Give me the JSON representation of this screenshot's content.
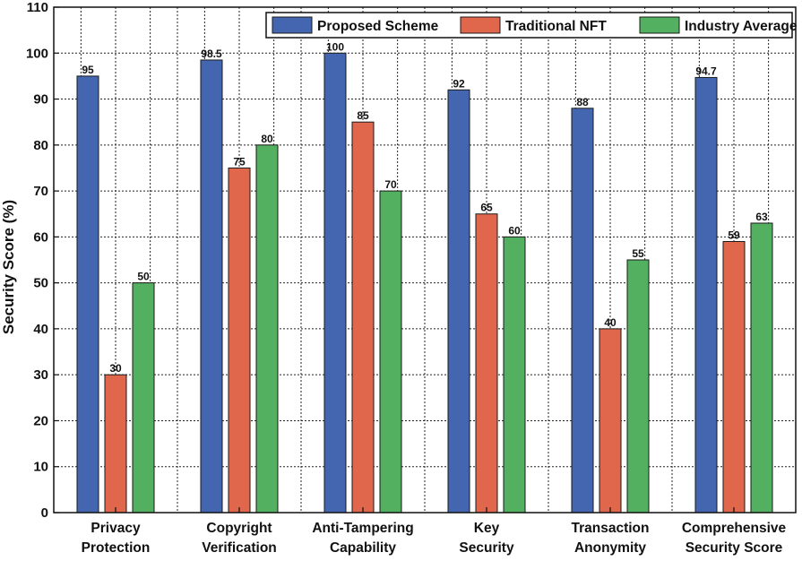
{
  "chart_data": {
    "type": "bar",
    "title": "",
    "xlabel": "",
    "ylabel": "Security Score (%)",
    "ylim": [
      0,
      110
    ],
    "yticks": [
      0,
      10,
      20,
      30,
      40,
      50,
      60,
      70,
      80,
      90,
      100,
      110
    ],
    "grid": true,
    "legend_position": "top-right",
    "categories": [
      [
        "Privacy",
        "Protection"
      ],
      [
        "Copyright",
        "Verification"
      ],
      [
        "Anti-Tampering",
        "Capability"
      ],
      [
        "Key",
        "Security"
      ],
      [
        "Transaction",
        "Anonymity"
      ],
      [
        "Comprehensive",
        "Security Score"
      ]
    ],
    "series": [
      {
        "name": "Proposed Scheme",
        "color": "#4466b0",
        "values": [
          95,
          98.5,
          100,
          92,
          88,
          94.7
        ],
        "labels": [
          "95",
          "98.5",
          "100",
          "92",
          "88",
          "94.7"
        ]
      },
      {
        "name": "Traditional NFT",
        "color": "#e0664c",
        "values": [
          30,
          75,
          85,
          65,
          40,
          59
        ],
        "labels": [
          "30",
          "75",
          "85",
          "65",
          "40",
          "59"
        ]
      },
      {
        "name": "Industry Average",
        "color": "#52b060",
        "values": [
          50,
          80,
          70,
          60,
          55,
          63
        ],
        "labels": [
          "50",
          "80",
          "70",
          "60",
          "55",
          "63"
        ]
      }
    ]
  }
}
